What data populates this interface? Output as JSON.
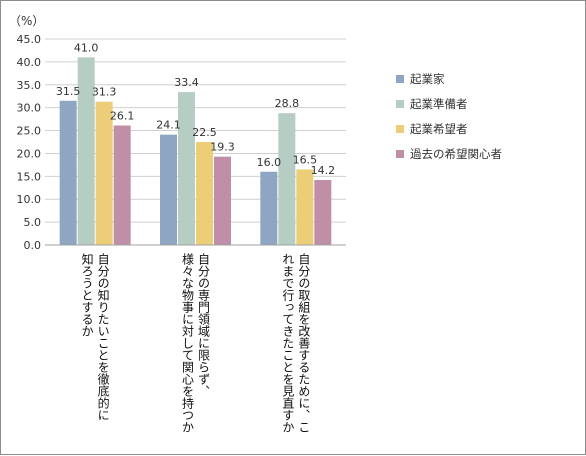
{
  "chart_data": {
    "type": "bar",
    "unit_label": "（%）",
    "ylim": [
      0,
      45
    ],
    "ytick_step": 5,
    "grid": true,
    "legend_position": "right",
    "categories": [
      "自分の知りたいことを徹底的に知ろうとするか",
      "自分の専門領域に限らず、様々な物事に対して関心を持つか",
      "自分の取組を改善するために、これまで行ってきたことを見直すか"
    ],
    "category_lines": [
      [
        "自分の知りたいことを徹底的に",
        "知ろうとするか"
      ],
      [
        "自分の専門領域に限らず、",
        "様々な物事に対して関心を持つか"
      ],
      [
        "自分の取組を改善するために、こ",
        "れまで行ってきたことを見直すか"
      ]
    ],
    "series": [
      {
        "name": "起業家",
        "color": "#8fa6c2",
        "values": [
          31.5,
          24.1,
          16.0
        ]
      },
      {
        "name": "起業準備者",
        "color": "#b5cdc3",
        "values": [
          41.0,
          33.4,
          28.8
        ]
      },
      {
        "name": "起業希望者",
        "color": "#eccd78",
        "values": [
          31.3,
          22.5,
          16.5
        ]
      },
      {
        "name": "過去の希望関心者",
        "color": "#bf8fa8",
        "values": [
          26.1,
          19.3,
          14.2
        ]
      }
    ]
  }
}
